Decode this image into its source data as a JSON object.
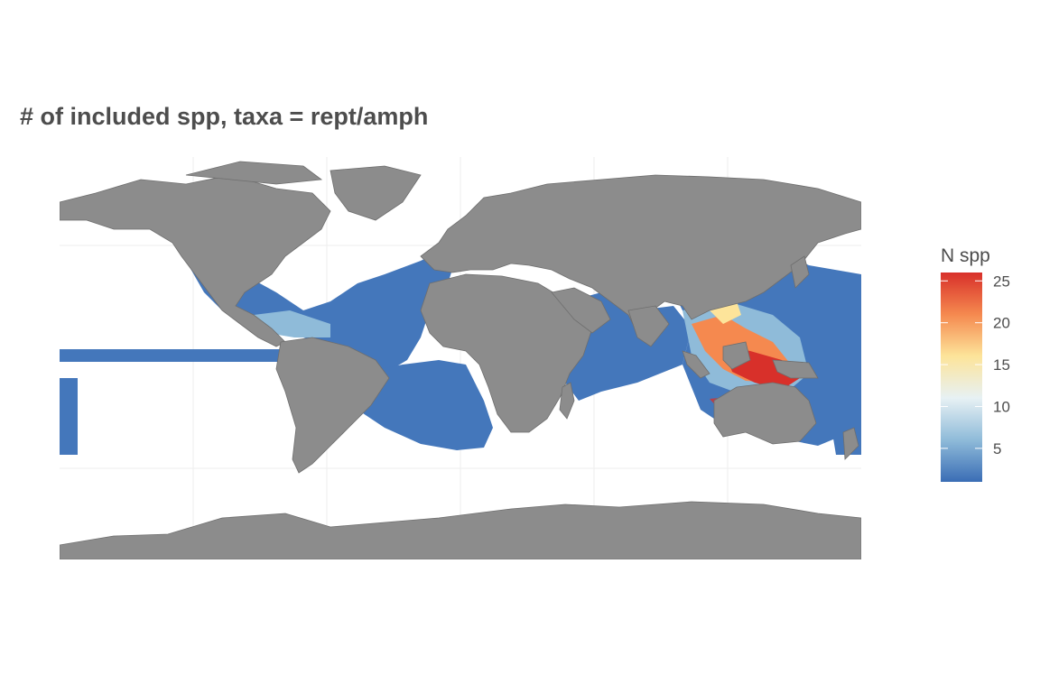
{
  "title": "# of included spp, taxa = rept/amph",
  "legend": {
    "title": "N spp",
    "ticks": [
      5,
      10,
      15,
      20,
      25
    ],
    "range": [
      1,
      26
    ],
    "colors": [
      "#3a6db5",
      "#8fbbd9",
      "#e7f1f4",
      "#fde49a",
      "#f5894f",
      "#d8302a"
    ]
  },
  "map": {
    "land_color": "#8c8c8c",
    "border_color": "#6e6e6e",
    "ocean_color": "#ffffff",
    "low_richness_color": "#4477bb"
  }
}
